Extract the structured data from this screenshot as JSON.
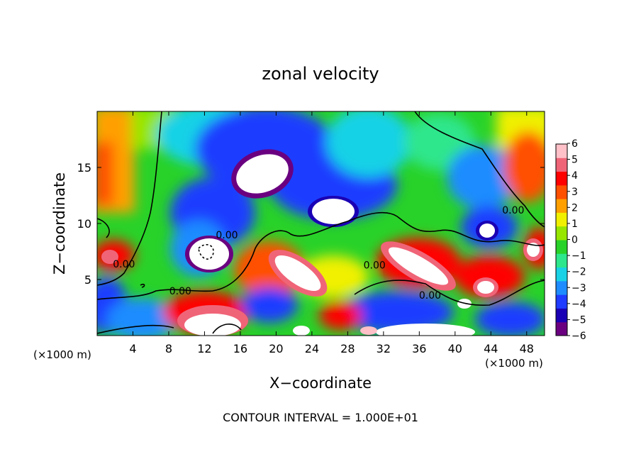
{
  "chart_data": {
    "type": "heatmap",
    "title": "zonal velocity",
    "xlabel": "X−coordinate",
    "ylabel": "Z−coordinate",
    "x_unit_left": "(×1000 m)",
    "x_unit_right": "(×1000 m)",
    "footer": "CONTOUR INTERVAL = 1.000E+01",
    "xlim": [
      0,
      50
    ],
    "ylim": [
      0,
      20
    ],
    "x_ticks": [
      4,
      8,
      12,
      16,
      20,
      24,
      28,
      32,
      36,
      40,
      44,
      48
    ],
    "y_ticks": [
      5,
      10,
      15
    ],
    "x_tick_labels": [
      "4",
      "8",
      "12",
      "16",
      "20",
      "24",
      "28",
      "32",
      "36",
      "40",
      "44",
      "48"
    ],
    "y_tick_labels": [
      "5",
      "10",
      "15"
    ],
    "colorbar": {
      "ticks": [
        6,
        5,
        4,
        3,
        2,
        1,
        0,
        -1,
        -2,
        -3,
        -4,
        -5,
        -6
      ],
      "labels": [
        "6",
        "5",
        "4",
        "3",
        "2",
        "1",
        "0",
        "−1",
        "−2",
        "−3",
        "−4",
        "−5",
        "−6"
      ],
      "range": [
        -6,
        6
      ],
      "colors": [
        "#6a0080",
        "#1a00b4",
        "#1f3cff",
        "#1e8cff",
        "#19d2e6",
        "#2ee68c",
        "#28d228",
        "#96e600",
        "#f0f000",
        "#ffa000",
        "#ff5000",
        "#ff0000",
        "#f06478",
        "#ffc0c8"
      ]
    },
    "contour_label": "0.00",
    "contour_labels": [
      {
        "text": "0.00",
        "x": 3.0,
        "y": 6.4
      },
      {
        "text": "0.00",
        "x": 9.3,
        "y": 4.0
      },
      {
        "text": "0.00",
        "x": 14.5,
        "y": 9.0
      },
      {
        "text": "0.00",
        "x": 31.0,
        "y": 6.3
      },
      {
        "text": "0.00",
        "x": 37.2,
        "y": 3.6
      },
      {
        "text": "0.00",
        "x": 46.5,
        "y": 11.2
      }
    ],
    "grid": false,
    "legend_placement": "right"
  }
}
